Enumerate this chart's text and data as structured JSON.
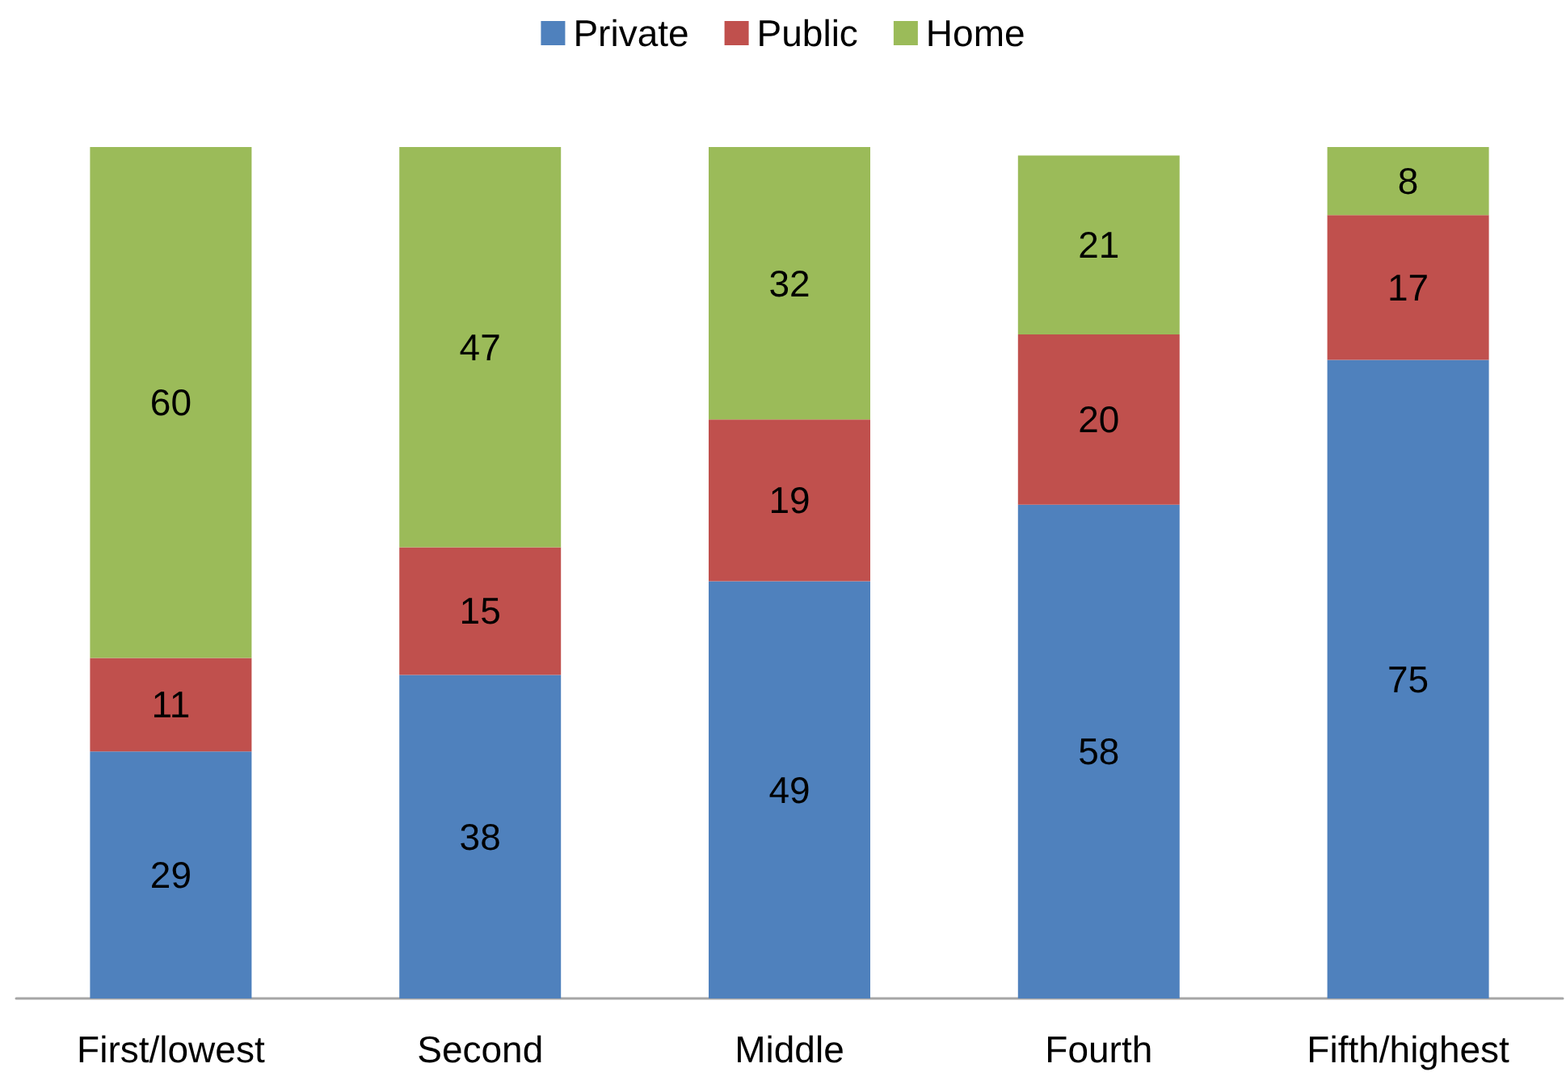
{
  "chart_data": {
    "type": "bar",
    "stacked": true,
    "data_labels": true,
    "legend": "top",
    "categories": [
      "First/lowest",
      "Second",
      "Middle",
      "Fourth",
      "Fifth/highest"
    ],
    "series": [
      {
        "name": "Private",
        "color": "#4f81bd",
        "values": [
          29,
          38,
          49,
          58,
          75
        ]
      },
      {
        "name": "Public",
        "color": "#c0504d",
        "values": [
          11,
          15,
          19,
          20,
          17
        ]
      },
      {
        "name": "Home",
        "color": "#9bbb59",
        "values": [
          60,
          47,
          32,
          21,
          8
        ]
      }
    ]
  }
}
